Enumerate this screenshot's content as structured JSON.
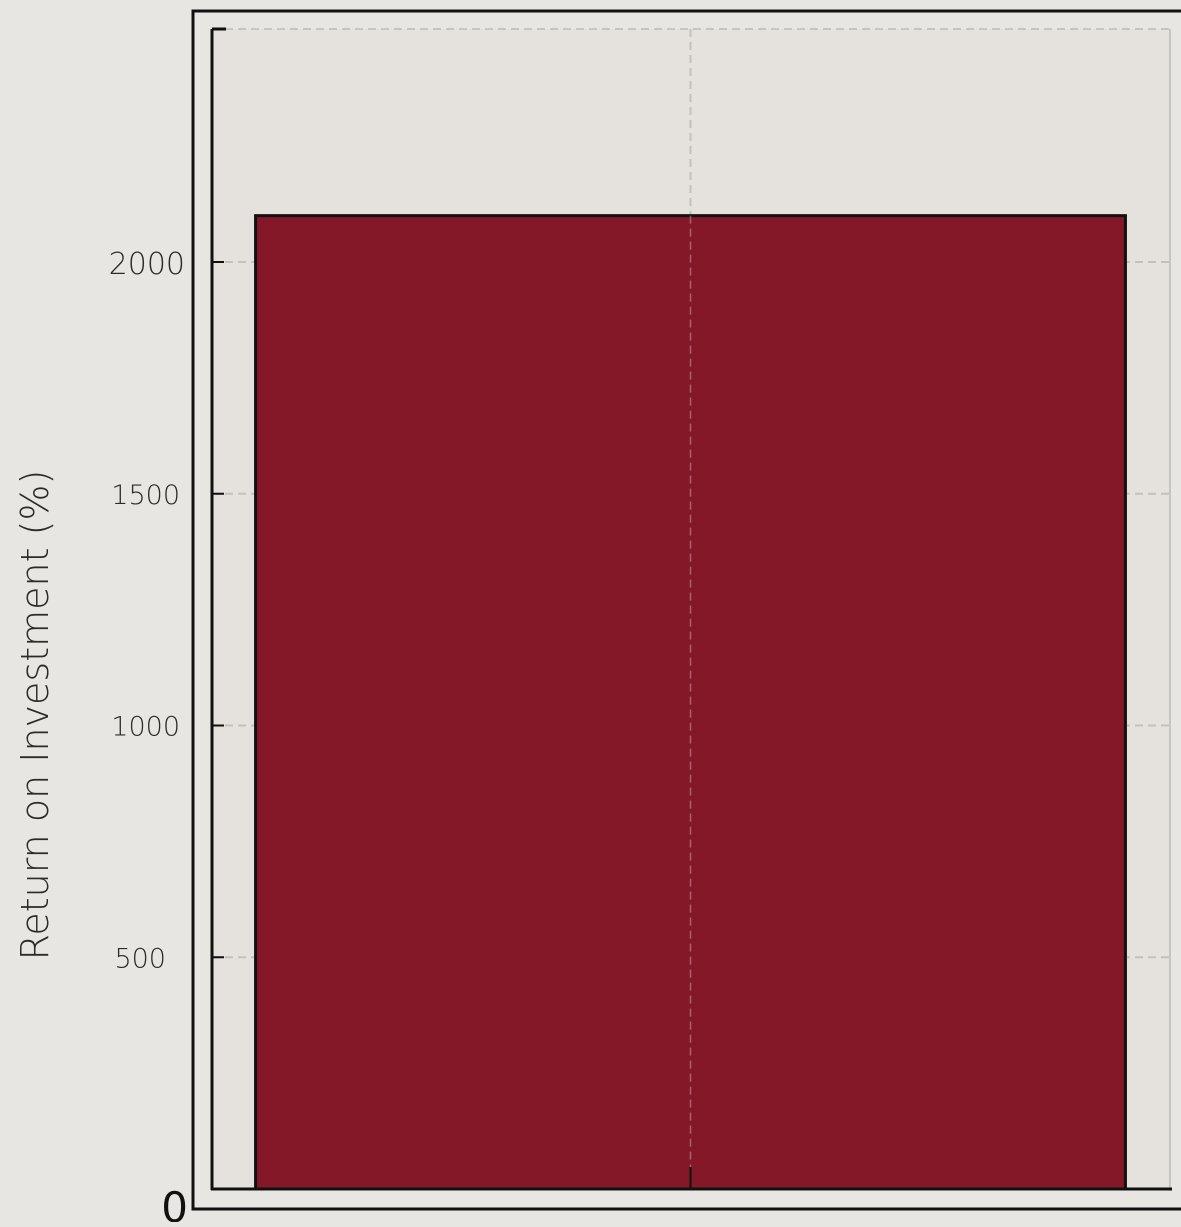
{
  "chart_data": {
    "type": "bar",
    "title": "",
    "xlabel": "",
    "ylabel": "Return on Investment (%)",
    "categories": [
      ""
    ],
    "values": [
      2100
    ],
    "ylim": [
      0,
      2500
    ],
    "yticks": [
      {
        "value": 0,
        "label": "0"
      },
      {
        "value": 500,
        "label": "500"
      },
      {
        "value": 1000,
        "label": "1000"
      },
      {
        "value": 1500,
        "label": "1500"
      },
      {
        "value": 2000,
        "label": "2000"
      }
    ],
    "grid": true,
    "bar_color": "#841828",
    "background_color": "#e5e1dc"
  }
}
